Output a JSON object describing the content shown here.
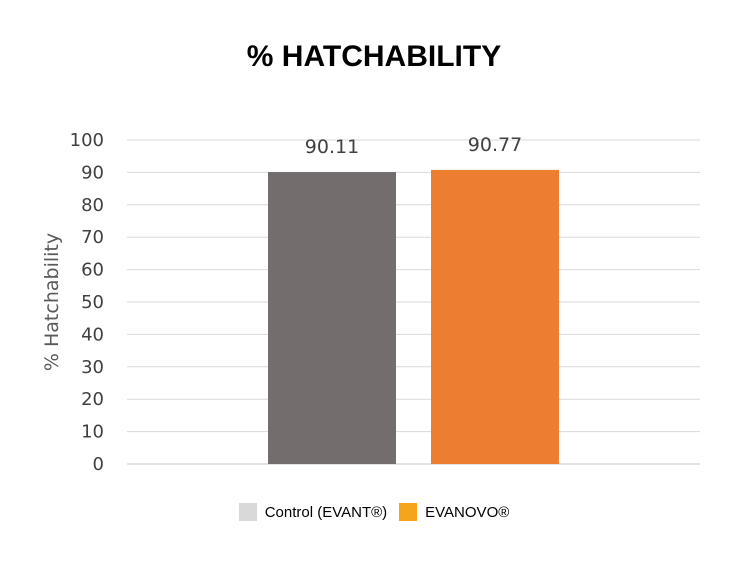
{
  "chart_data": {
    "type": "bar",
    "title": "% HATCHABILITY",
    "ylabel": "% Hatchability",
    "xlabel": "",
    "ylim": [
      0,
      100
    ],
    "yticks": [
      0,
      10,
      20,
      30,
      40,
      50,
      60,
      70,
      80,
      90,
      100
    ],
    "grid": true,
    "legend_position": "bottom",
    "series": [
      {
        "name": "Control (EVANT®)",
        "values": [
          90.11
        ],
        "color": "#736e6d",
        "legend_color": "#d9d9d9",
        "data_label": "90.11"
      },
      {
        "name": "EVANOVO®",
        "values": [
          90.77
        ],
        "color": "#ed7d31",
        "legend_color": "#f4a51c",
        "data_label": "90.77"
      }
    ]
  }
}
